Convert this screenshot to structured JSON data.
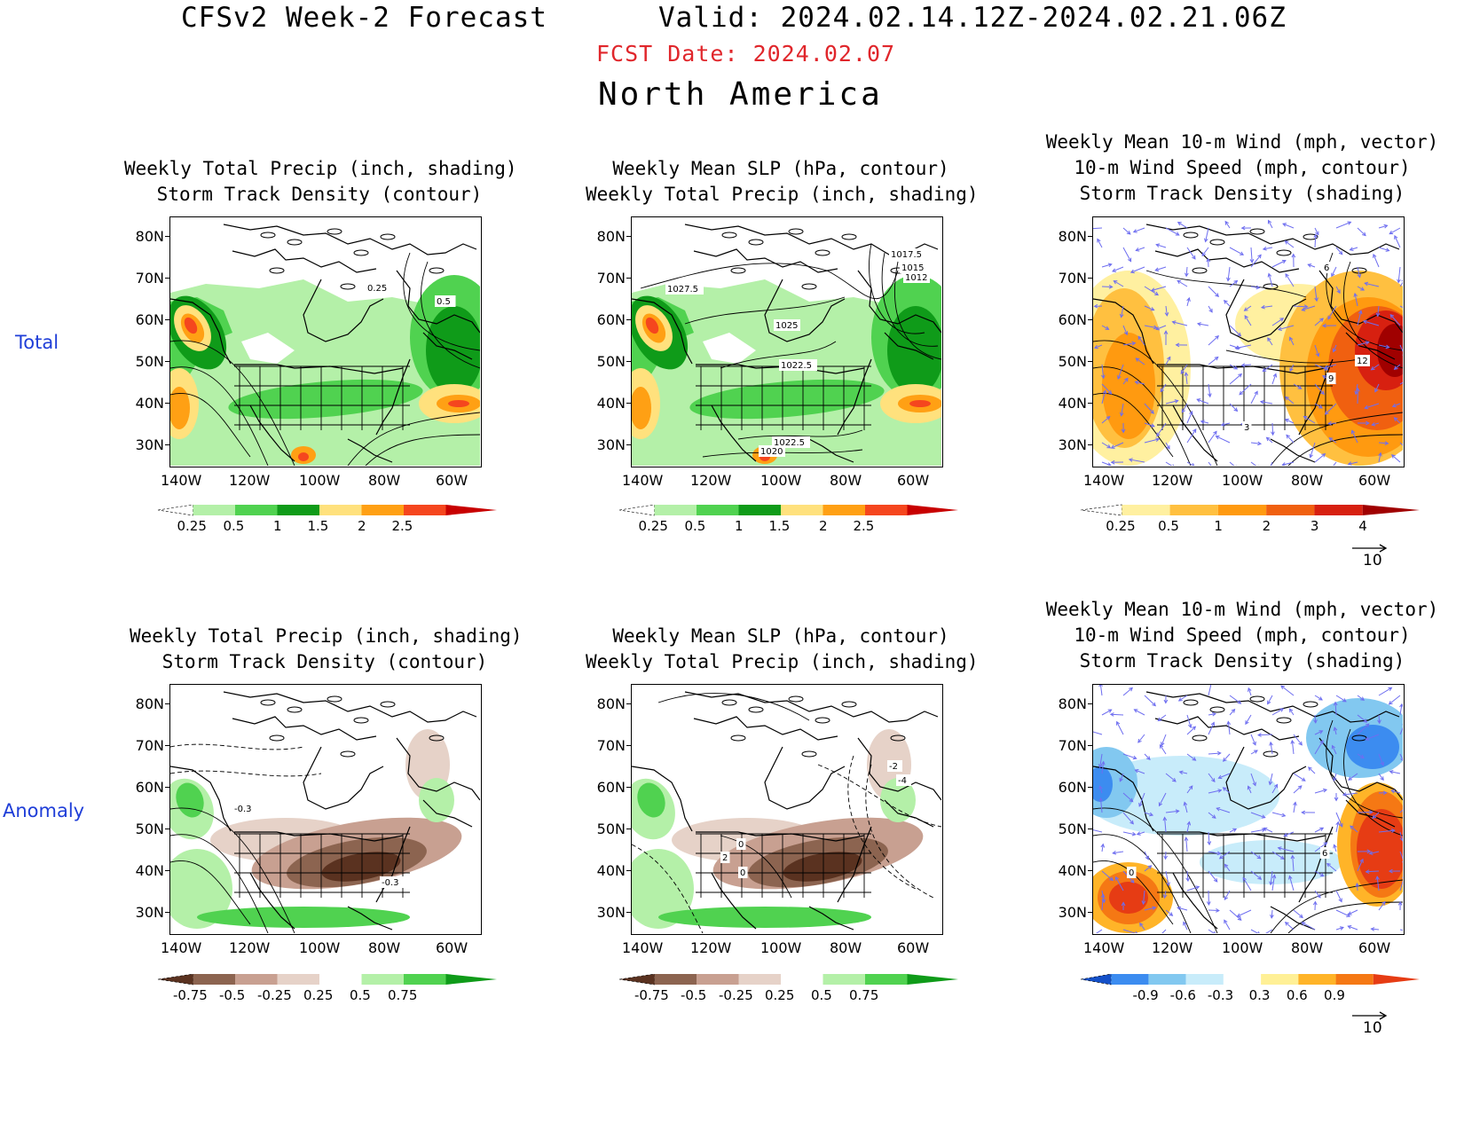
{
  "header": {
    "model": "CFSv2 Week-2 Forecast",
    "valid": "Valid: 2024.02.14.12Z-2024.02.21.06Z",
    "fcst_date": "FCST Date: 2024.02.07",
    "region": "North America"
  },
  "rows": {
    "total": "Total",
    "anomaly": "Anomaly"
  },
  "axes": {
    "lat": [
      "80N",
      "70N",
      "60N",
      "50N",
      "40N",
      "30N"
    ],
    "lon": [
      "140W",
      "120W",
      "100W",
      "80W",
      "60W"
    ]
  },
  "panels": {
    "precip": {
      "line1": "Weekly Total Precip (inch, shading)",
      "line2": "Storm Track Density (contour)"
    },
    "slp": {
      "line1": "Weekly Mean SLP (hPa, contour)",
      "line2": "Weekly Total Precip (inch, shading)"
    },
    "wind": {
      "line1": "Weekly Mean 10-m Wind (mph, vector)",
      "line2": "10-m Wind Speed (mph, contour)",
      "line3": "Storm Track Density (shading)"
    }
  },
  "colorbars": {
    "precip_total": {
      "labels": [
        "0.25",
        "0.5",
        "1",
        "1.5",
        "2",
        "2.5"
      ],
      "colors": [
        "#ffffff",
        "#b4f0a8",
        "#50d250",
        "#0f9b19",
        "#ffe17d",
        "#ffa014",
        "#f5461e",
        "#c80000"
      ]
    },
    "storm_total": {
      "labels": [
        "0.25",
        "0.5",
        "1",
        "2",
        "3",
        "4"
      ],
      "colors": [
        "#ffffff",
        "#fff0a0",
        "#ffc040",
        "#ff9a10",
        "#f06010",
        "#d72010",
        "#a00000"
      ]
    },
    "precip_anom": {
      "labels": [
        "-0.75",
        "-0.5",
        "-0.25",
        "0.25",
        "0.5",
        "0.75"
      ],
      "colors": [
        "#5a3220",
        "#8c6450",
        "#c8a091",
        "#e6d2c8",
        "#ffffff",
        "#b4f0a8",
        "#50d250",
        "#0f9b19"
      ]
    },
    "storm_anom": {
      "labels": [
        "-0.9",
        "-0.6",
        "-0.3",
        "0.3",
        "0.6",
        "0.9"
      ],
      "colors": [
        "#1450c8",
        "#3c8cf0",
        "#82c8f0",
        "#c8ecfa",
        "#ffffff",
        "#fff096",
        "#ffb428",
        "#f57814",
        "#e63c14"
      ]
    }
  },
  "contour_labels": {
    "total_precip": [
      "0.25",
      "0.5"
    ],
    "total_slp": [
      "1027.5",
      "1017.5",
      "1015",
      "1012",
      "1025",
      "1022.5",
      "1022.5",
      "1020"
    ],
    "total_wind": [
      "12",
      "6",
      "9",
      "3"
    ],
    "anom_precip": [
      "-0.3",
      "-0.3"
    ],
    "anom_slp": [
      "2",
      "0",
      "0",
      "-2",
      "-4"
    ],
    "anom_wind": [
      "0",
      "6"
    ]
  },
  "vector_ref": "10"
}
